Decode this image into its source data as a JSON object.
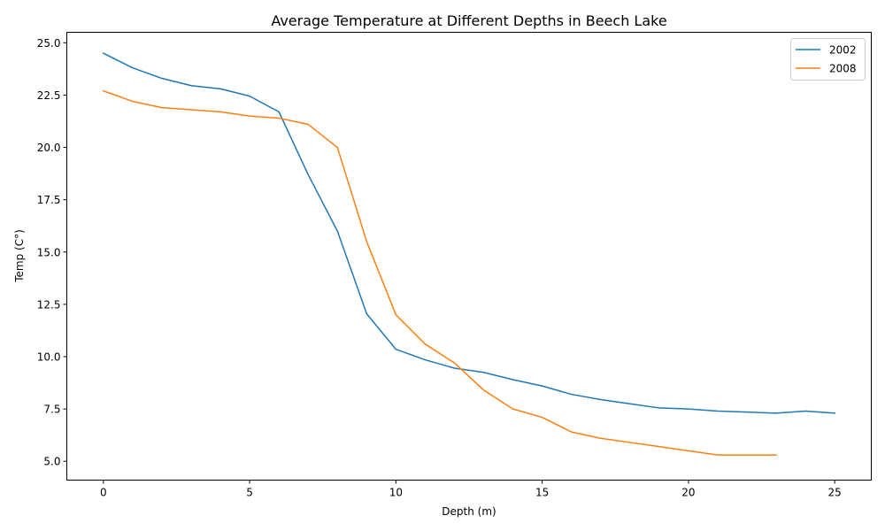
{
  "chart_data": {
    "type": "line",
    "title": "Average Temperature at Different Depths in Beech Lake",
    "xlabel": "Depth (m)",
    "ylabel": "Temp (C°)",
    "xlim": [
      -1.25,
      26.25
    ],
    "ylim": [
      4.1,
      25.5
    ],
    "xticks": [
      0,
      5,
      10,
      15,
      20,
      25
    ],
    "xtick_labels": [
      "0",
      "5",
      "10",
      "15",
      "20",
      "25"
    ],
    "yticks": [
      5.0,
      7.5,
      10.0,
      12.5,
      15.0,
      17.5,
      20.0,
      22.5,
      25.0
    ],
    "ytick_labels": [
      "5.0",
      "7.5",
      "10.0",
      "12.5",
      "15.0",
      "17.5",
      "20.0",
      "22.5",
      "25.0"
    ],
    "grid": false,
    "legend_position": "top-right",
    "series": [
      {
        "name": "2002",
        "color": "#1f77b4",
        "x": [
          0,
          1,
          2,
          3,
          4,
          5,
          6,
          7,
          8,
          9,
          10,
          11,
          12,
          13,
          14,
          15,
          16,
          17,
          18,
          19,
          20,
          21,
          22,
          23,
          24,
          25
        ],
        "y": [
          24.5,
          23.8,
          23.3,
          22.95,
          22.8,
          22.45,
          21.7,
          18.7,
          16.0,
          12.05,
          10.35,
          9.85,
          9.45,
          9.25,
          8.9,
          8.6,
          8.2,
          7.95,
          7.75,
          7.55,
          7.5,
          7.4,
          7.35,
          7.3,
          7.4,
          7.3
        ]
      },
      {
        "name": "2008",
        "color": "#ff7f0e",
        "x": [
          0,
          1,
          2,
          3,
          4,
          5,
          6,
          7,
          8,
          9,
          10,
          11,
          12,
          13,
          14,
          15,
          16,
          17,
          18,
          19,
          20,
          21,
          22,
          23
        ],
        "y": [
          22.7,
          22.2,
          21.9,
          21.8,
          21.7,
          21.5,
          21.4,
          21.1,
          20.0,
          15.5,
          12.0,
          10.6,
          9.7,
          8.4,
          7.5,
          7.1,
          6.4,
          6.1,
          5.9,
          5.7,
          5.5,
          5.3,
          5.3,
          5.3
        ]
      }
    ]
  }
}
